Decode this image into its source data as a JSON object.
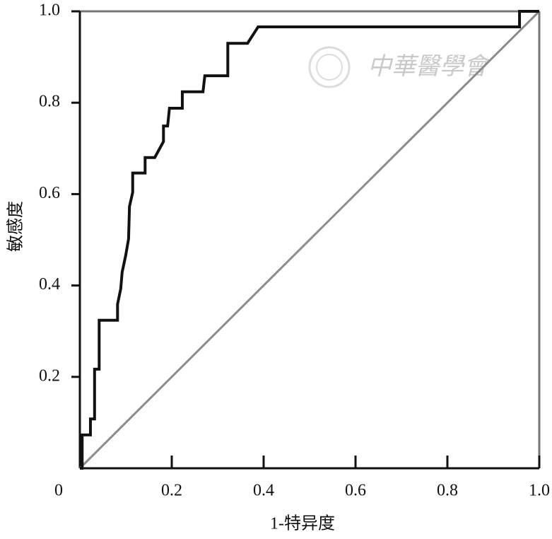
{
  "chart_data": {
    "type": "line",
    "xlabel": "1-特异度",
    "ylabel": "敏感度",
    "watermark": "中華醫學會",
    "xlim": [
      0,
      1
    ],
    "ylim": [
      0,
      1
    ],
    "xticks": [
      0,
      0.2,
      0.4,
      0.6,
      0.8,
      {
        "value": 1,
        "label": "1.0"
      }
    ],
    "yticks": [
      0.2,
      0.4,
      0.6,
      0.8,
      {
        "value": 1,
        "label": "1.0"
      }
    ],
    "color": "#111111",
    "reference_color": "#8c8c8c",
    "x": [
      0,
      0.005,
      0.005,
      0.023,
      0.023,
      0.032,
      0.032,
      0.042,
      0.042,
      0.082,
      0.082,
      0.089,
      0.092,
      0.1,
      0.106,
      0.108,
      0.115,
      0.115,
      0.142,
      0.142,
      0.163,
      0.182,
      0.182,
      0.191,
      0.195,
      0.223,
      0.223,
      0.268,
      0.272,
      0.322,
      0.322,
      0.365,
      0.388,
      0.957,
      0.957,
      1
    ],
    "y": [
      0,
      0,
      0.073,
      0.073,
      0.108,
      0.108,
      0.217,
      0.217,
      0.324,
      0.324,
      0.359,
      0.393,
      0.429,
      0.467,
      0.502,
      0.573,
      0.604,
      0.646,
      0.646,
      0.68,
      0.68,
      0.715,
      0.749,
      0.749,
      0.788,
      0.788,
      0.824,
      0.824,
      0.859,
      0.859,
      0.93,
      0.93,
      0.966,
      0.966,
      1,
      1
    ]
  }
}
